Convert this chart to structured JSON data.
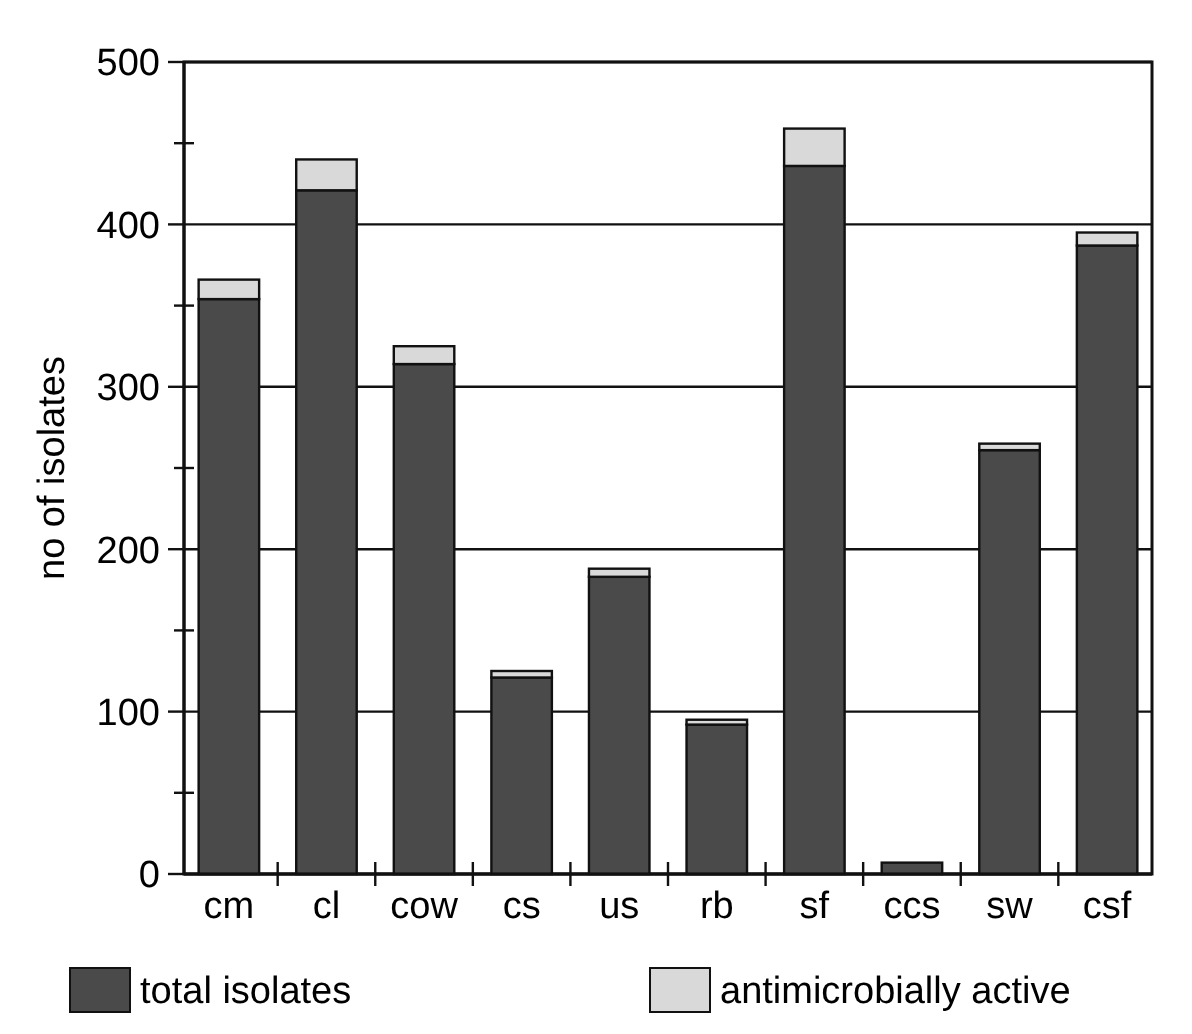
{
  "chart_data": {
    "type": "bar",
    "stacked": true,
    "ylabel": "no of isolates",
    "categories": [
      "cm",
      "cl",
      "cow",
      "cs",
      "us",
      "rb",
      "sf",
      "ccs",
      "sw",
      "csf"
    ],
    "series": [
      {
        "name": "total isolates",
        "color": "#4a4a4a",
        "values": [
          354,
          421,
          314,
          121,
          183,
          92,
          436,
          7,
          261,
          387
        ]
      },
      {
        "name": "antimicrobially active",
        "color": "#d9d9d9",
        "values": [
          12,
          19,
          11,
          4,
          5,
          3,
          23,
          0,
          4,
          8
        ]
      }
    ],
    "ylim": [
      0,
      500
    ],
    "yticks": [
      0,
      {
        "value": 50,
        "label": null
      },
      100,
      {
        "value": 150,
        "label": null
      },
      200,
      {
        "value": 250,
        "label": null
      },
      300,
      {
        "value": 350,
        "label": null
      },
      400,
      {
        "value": 450,
        "label": null
      },
      500
    ],
    "grid": "y",
    "legend": "bottom"
  }
}
